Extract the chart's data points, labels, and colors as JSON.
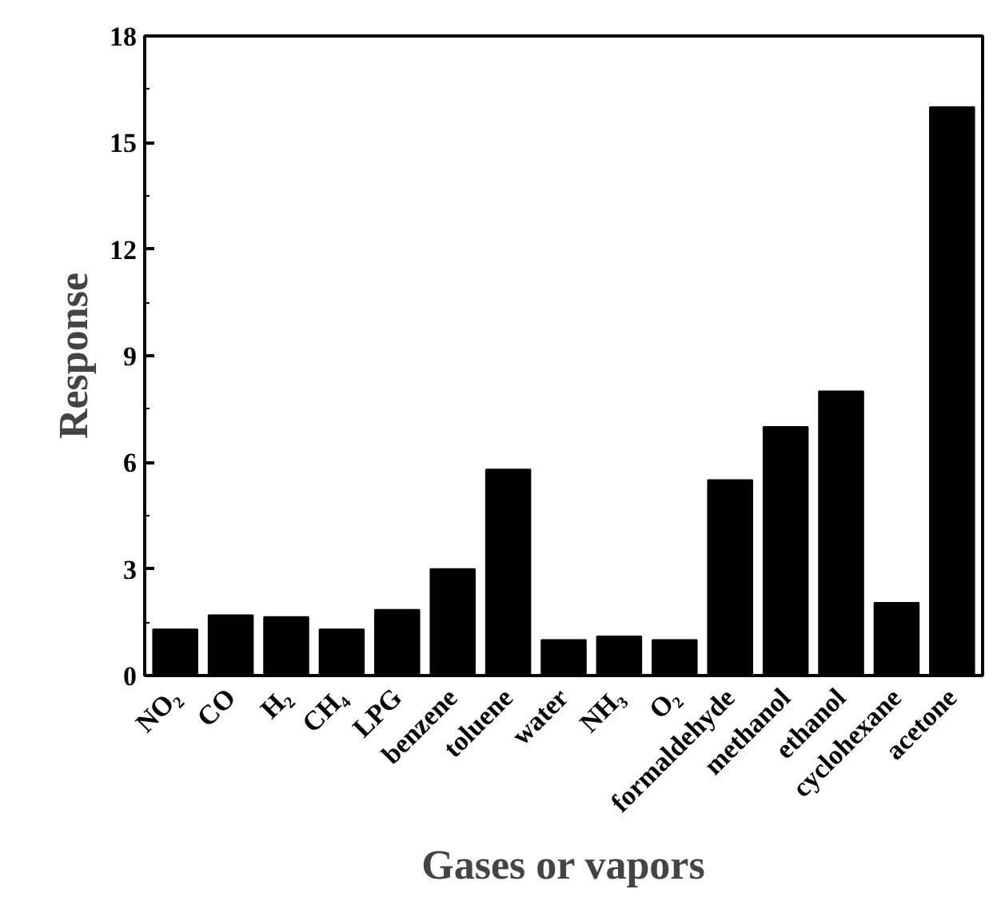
{
  "chart_data": {
    "type": "bar",
    "xlabel": "Gases or vapors",
    "ylabel": "Response",
    "categories": [
      "NO₂",
      "CO",
      "H₂",
      "CH₄",
      "LPG",
      "benzene",
      "toluene",
      "water",
      "NH₃",
      "O₂",
      "formaldehyde",
      "methanol",
      "ethanol",
      "cyclohexane",
      "acetone"
    ],
    "values": [
      1.3,
      1.7,
      1.65,
      1.3,
      1.85,
      3.0,
      5.8,
      1.0,
      1.1,
      1.0,
      5.5,
      7.0,
      8.0,
      2.05,
      16.0
    ],
    "color": "#000000",
    "ylim": [
      0,
      18
    ],
    "yticks": [
      0,
      3,
      6,
      9,
      12,
      15,
      18
    ],
    "grid": false
  }
}
